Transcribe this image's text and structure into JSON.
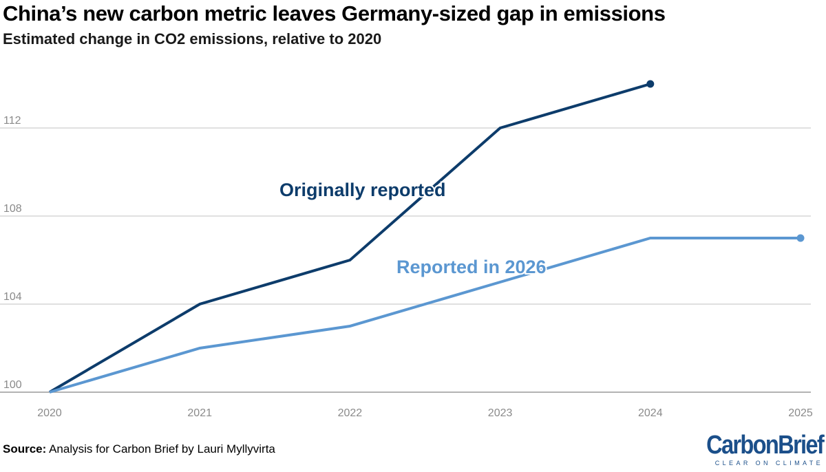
{
  "header": {
    "title": "China’s new carbon metric leaves Germany-sized gap in emissions",
    "subtitle": "Estimated change in CO2 emissions, relative to 2020"
  },
  "footer": {
    "source_label": "Source:",
    "source_text": "Analysis for Carbon Brief by Lauri Myllyvirta"
  },
  "logo": {
    "wordmark": "CarbonBrief",
    "tagline": "CLEAR ON CLIMATE"
  },
  "chart_data": {
    "type": "line",
    "title": "China’s new carbon metric leaves Germany-sized gap in emissions",
    "subtitle": "Estimated change in CO2 emissions, relative to 2020",
    "xlabel": "",
    "ylabel": "",
    "x": [
      "2020",
      "2021",
      "2022",
      "2023",
      "2024",
      "2025"
    ],
    "ylim": [
      100,
      112
    ],
    "yticks": [
      100,
      104,
      108,
      112
    ],
    "grid": true,
    "legend": "inline",
    "series": [
      {
        "name": "Originally reported",
        "color": "#0d3c6b",
        "values": [
          100,
          104,
          106,
          112,
          114,
          null
        ]
      },
      {
        "name": "Reported in 2026",
        "color": "#5b97d1",
        "values": [
          100,
          102,
          103,
          105,
          107,
          107
        ]
      }
    ]
  }
}
